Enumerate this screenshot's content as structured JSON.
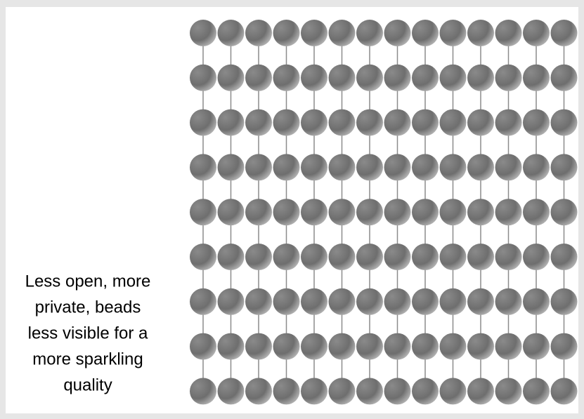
{
  "caption": {
    "lines": [
      "Less open, more",
      "private, beads",
      "less visible for a",
      "more sparkling",
      "quality"
    ]
  }
}
